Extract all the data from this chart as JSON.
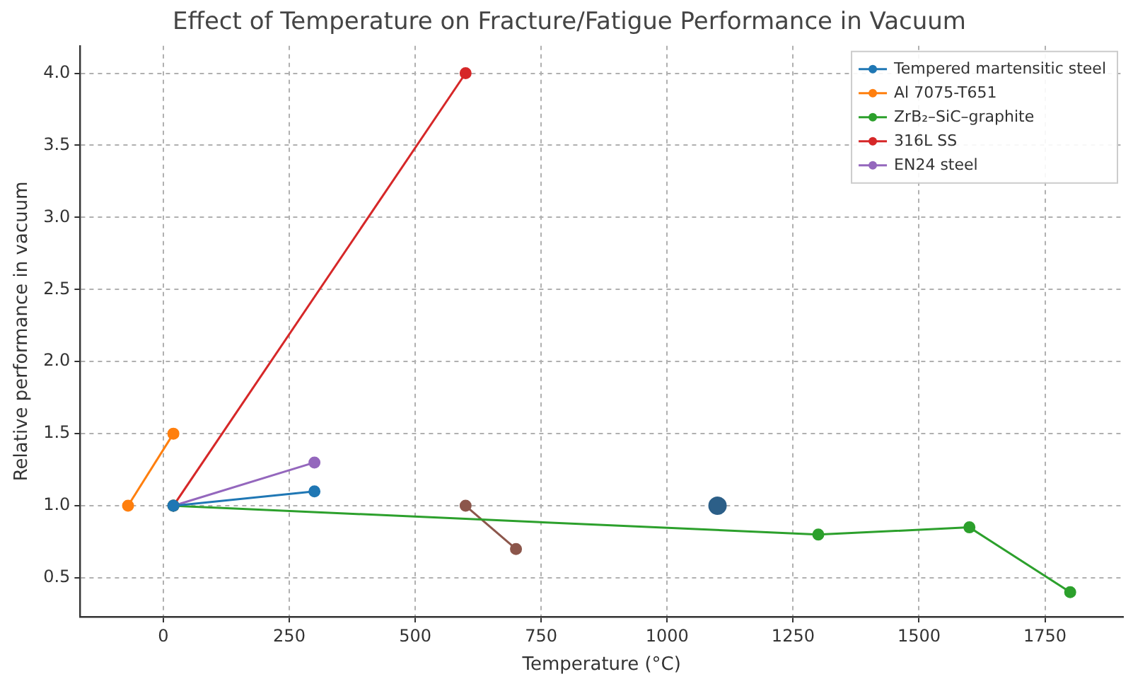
{
  "chart_data": {
    "type": "line",
    "title": "Effect of Temperature on Fracture/Fatigue Performance in Vacuum",
    "xlabel": "Temperature (°C)",
    "ylabel": "Relative performance in vacuum",
    "xlim": [
      -165,
      1905
    ],
    "xticks": [
      0,
      250,
      500,
      750,
      1000,
      1250,
      1500,
      1750
    ],
    "ylim": [
      0.23,
      4.19
    ],
    "yticks": [
      {
        "value": 0.5,
        "label": "0.5"
      },
      {
        "value": 1,
        "label": "1.0"
      },
      {
        "value": 1.5,
        "label": "1.5"
      },
      {
        "value": 2,
        "label": "2.0"
      },
      {
        "value": 2.5,
        "label": "2.5"
      },
      {
        "value": 3,
        "label": "3.0"
      },
      {
        "value": 3.5,
        "label": "3.5"
      },
      {
        "value": 4,
        "label": "4.0"
      }
    ],
    "grid": true,
    "legend": "top right",
    "marker": "circle",
    "line_style": "solid",
    "series": [
      {
        "name": "Tempered martensitic steel",
        "color": "#1f77b4",
        "x": [
          20,
          300
        ],
        "values": [
          1.0,
          1.1
        ]
      },
      {
        "name": "Al 7075-T651",
        "color": "#ff7f0e",
        "x": [
          -70,
          20
        ],
        "values": [
          1.0,
          1.5
        ]
      },
      {
        "name": "ZrB₂–SiC–graphite",
        "color": "#2ca02c",
        "x": [
          20,
          1300,
          1600,
          1800
        ],
        "values": [
          1.0,
          0.8,
          0.85,
          0.4
        ]
      },
      {
        "name": "316L SS",
        "color": "#d62728",
        "x": [
          20,
          600
        ],
        "values": [
          1.0,
          4.0
        ]
      },
      {
        "name": "EN24 steel",
        "color": "#9467bd",
        "x": [
          20,
          300
        ],
        "values": [
          1.0,
          1.3
        ]
      },
      {
        "type": "scatter",
        "color": "#2c5f88",
        "x": [
          1100
        ],
        "values": [
          1.0
        ]
      },
      {
        "color": "#8c564b",
        "x": [
          600,
          700
        ],
        "values": [
          1.0,
          0.7
        ]
      }
    ]
  }
}
